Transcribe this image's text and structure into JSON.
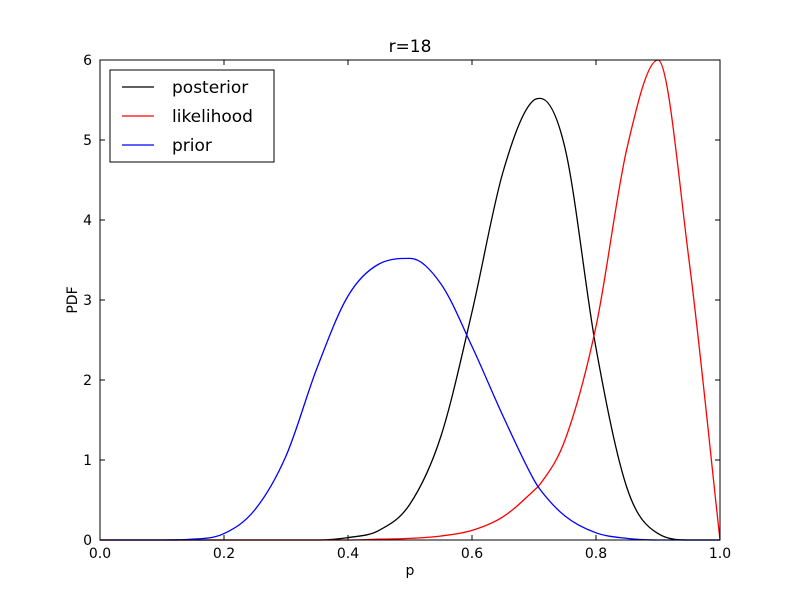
{
  "chart_data": {
    "type": "line",
    "title": "r=18",
    "xlabel": "p",
    "ylabel": "PDF",
    "xlim": [
      0.0,
      1.0
    ],
    "ylim": [
      0,
      6
    ],
    "xticks": [
      "0.0",
      "0.2",
      "0.4",
      "0.6",
      "0.8",
      "1.0"
    ],
    "yticks": [
      "0",
      "1",
      "2",
      "3",
      "4",
      "5",
      "6"
    ],
    "grid": false,
    "legend_position": "upper-left",
    "x": [
      0.0,
      0.05,
      0.1,
      0.15,
      0.2,
      0.25,
      0.3,
      0.35,
      0.4,
      0.45,
      0.5,
      0.55,
      0.6,
      0.65,
      0.7,
      0.71,
      0.75,
      0.8,
      0.85,
      0.9,
      0.95,
      1.0
    ],
    "series": [
      {
        "name": "posterior",
        "color": "#000000",
        "values": [
          0.0,
          0.0,
          0.0,
          0.0,
          0.0,
          0.0,
          0.0,
          0.0,
          0.03,
          0.12,
          0.45,
          1.3,
          2.85,
          4.6,
          5.5,
          5.52,
          4.9,
          2.4,
          0.65,
          0.08,
          0.0,
          0.0
        ]
      },
      {
        "name": "likelihood",
        "color": "#ff0000",
        "values": [
          0.0,
          0.0,
          0.0,
          0.0,
          0.0,
          0.0,
          0.0,
          0.0,
          0.0,
          0.01,
          0.02,
          0.05,
          0.12,
          0.29,
          0.62,
          0.7,
          1.25,
          2.67,
          4.9,
          6.0,
          3.5,
          0.0
        ]
      },
      {
        "name": "prior",
        "color": "#0000ff",
        "values": [
          0.0,
          0.0,
          0.0,
          0.01,
          0.08,
          0.38,
          1.05,
          2.15,
          3.05,
          3.45,
          3.52,
          3.2,
          2.42,
          1.55,
          0.75,
          0.63,
          0.3,
          0.09,
          0.02,
          0.0,
          0.0,
          0.0
        ]
      }
    ]
  }
}
